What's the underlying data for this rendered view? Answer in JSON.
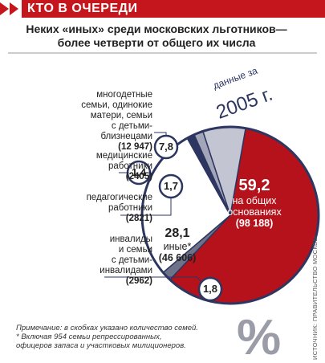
{
  "chart_data": {
    "type": "pie",
    "title": "КТО В ОЧЕРЕДИ",
    "subtitle": "Неких «иных» среди московских льготников—\nболее четверти от общего их числа",
    "badge": {
      "line1": "данные за",
      "line2": "2005 г."
    },
    "categories": [
      "на общих\nоснованиях",
      "инвалиды\nи семьи\nс детьми-\nинвалидами",
      "иные*",
      "медицинские\nработники",
      "педагогические\nработники",
      "многодетные\nсемьи, одинокие\nматери, семьи\nс детьми-\nблизнецами"
    ],
    "values": [
      59.2,
      1.8,
      28.1,
      1.4,
      1.7,
      7.8
    ],
    "value_labels": [
      "59,2",
      "1,8",
      "28,1",
      "1,4",
      "1,7",
      "7,8"
    ],
    "count_labels": [
      "(98 188)",
      "(2962)",
      "(46 606)",
      "(2405)",
      "(2821)",
      "(12 947)"
    ],
    "colors": [
      "#b5121b",
      "#6f7389",
      "#ffffff",
      "#2d3561",
      "#a3a6b8",
      "#c3c5d3"
    ],
    "note": "Примечание: в скобках указано количество семей.\n* Включая 954 семьи репрессированных,\nофицеров запаса и участковых милиционеров.",
    "source": "ИСТОЧНИК: ПРАВИТЕЛЬСТВО МОСКВЫ",
    "icon": "%"
  }
}
